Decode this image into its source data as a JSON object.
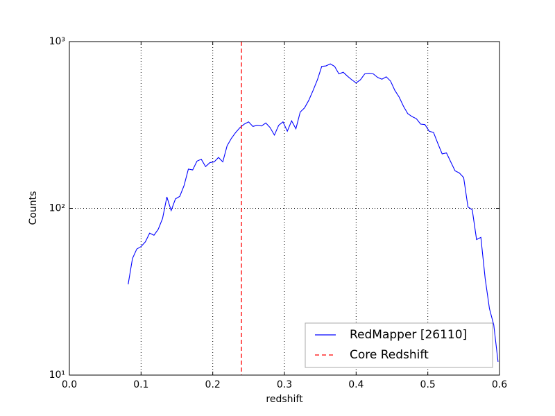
{
  "chart_data": {
    "type": "line",
    "xlabel": "redshift",
    "ylabel": "Counts",
    "xlim": [
      0,
      0.6
    ],
    "xticks": [
      {
        "value": 0,
        "label": "0.0"
      },
      0.1,
      0.2,
      0.3,
      0.4,
      0.5,
      0.6
    ],
    "ylim": [
      10,
      1000
    ],
    "yscale": "log",
    "yticks": [
      {
        "value": 10,
        "label": "10¹"
      },
      {
        "value": 100,
        "label": "10²"
      },
      {
        "value": 1000,
        "label": "10³"
      }
    ],
    "grid": true,
    "legend": "lower right",
    "series": [
      {
        "name": "RedMapper [26110]",
        "color": "#0000ff",
        "x": [
          0.082,
          0.088,
          0.094,
          0.1,
          0.106,
          0.112,
          0.118,
          0.124,
          0.13,
          0.136,
          0.142,
          0.148,
          0.154,
          0.16,
          0.166,
          0.172,
          0.178,
          0.184,
          0.19,
          0.196,
          0.202,
          0.208,
          0.214,
          0.22,
          0.226,
          0.232,
          0.238,
          0.244,
          0.25,
          0.256,
          0.262,
          0.268,
          0.274,
          0.28,
          0.286,
          0.292,
          0.298,
          0.304,
          0.31,
          0.316,
          0.322,
          0.328,
          0.334,
          0.34,
          0.346,
          0.352,
          0.358,
          0.364,
          0.37,
          0.376,
          0.382,
          0.388,
          0.394,
          0.4,
          0.406,
          0.412,
          0.418,
          0.424,
          0.43,
          0.436,
          0.442,
          0.448,
          0.454,
          0.46,
          0.466,
          0.472,
          0.478,
          0.484,
          0.49,
          0.496,
          0.502,
          0.508,
          0.514,
          0.52,
          0.526,
          0.532,
          0.538,
          0.544,
          0.55,
          0.556,
          0.562,
          0.568,
          0.574,
          0.58,
          0.586,
          0.592,
          0.598
        ],
        "values": [
          35,
          50,
          57,
          59,
          63,
          71,
          69,
          75,
          87,
          117,
          97,
          114,
          118,
          137,
          172,
          170,
          192,
          197,
          178,
          188,
          190,
          202,
          190,
          237,
          263,
          285,
          305,
          320,
          330,
          310,
          315,
          312,
          325,
          305,
          275,
          315,
          330,
          290,
          335,
          300,
          378,
          400,
          445,
          510,
          590,
          710,
          715,
          735,
          710,
          640,
          655,
          620,
          590,
          565,
          590,
          640,
          645,
          640,
          610,
          595,
          615,
          580,
          510,
          465,
          410,
          370,
          355,
          345,
          320,
          318,
          290,
          285,
          245,
          212,
          215,
          190,
          168,
          163,
          153,
          102,
          98,
          65,
          67,
          38,
          25,
          20,
          12
        ]
      },
      {
        "name": "Core Redshift",
        "color": "#ff0000",
        "kind": "vline",
        "dashed": true,
        "x": 0.24
      }
    ]
  }
}
